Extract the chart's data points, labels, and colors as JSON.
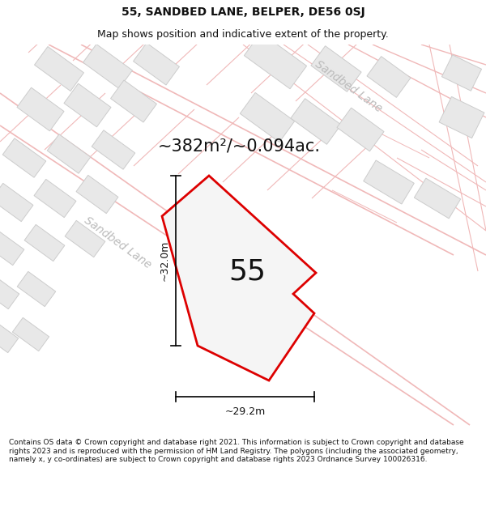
{
  "title": "55, SANDBED LANE, BELPER, DE56 0SJ",
  "subtitle": "Map shows position and indicative extent of the property.",
  "area_text": "~382m²/~0.094ac.",
  "number_label": "55",
  "dim_horizontal": "~29.2m",
  "dim_vertical": "~32.0m",
  "sandbed_lane_label": "Sandbed Lane",
  "footer_text": "Contains OS data © Crown copyright and database right 2021. This information is subject to Crown copyright and database rights 2023 and is reproduced with the permission of HM Land Registry. The polygons (including the associated geometry, namely x, y co-ordinates) are subject to Crown copyright and database rights 2023 Ordnance Survey 100026316.",
  "map_bg": "#ffffff",
  "street_color": "#f0b8b8",
  "building_fill": "#e8e8e8",
  "building_edge": "#cccccc",
  "property_fill": "#f5f5f5",
  "property_edge": "#dd0000",
  "sandbed_color": "#bbbbbb",
  "title_fontsize": 10,
  "subtitle_fontsize": 9,
  "area_fontsize": 15,
  "number_fontsize": 26,
  "dim_fontsize": 9,
  "footer_fontsize": 6.5,
  "sandbed_fontsize": 10
}
